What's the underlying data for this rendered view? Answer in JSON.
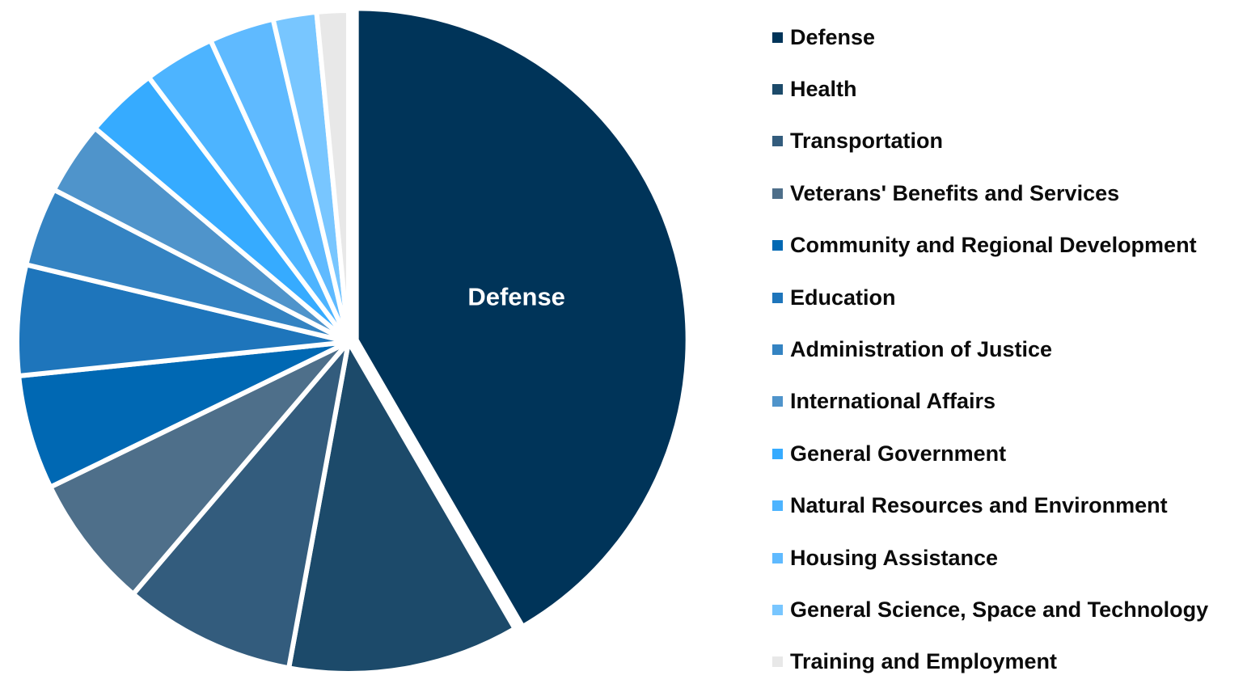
{
  "chart_data": {
    "type": "pie",
    "categories": [
      "Defense",
      "Health",
      "Transportation",
      "Veterans' Benefits and Services",
      "Community and Regional Development",
      "Education",
      "Administration of Justice",
      "International Affairs",
      "General Government",
      "Natural Resources and Environment",
      "Housing Assistance",
      "General Science, Space and Technology",
      "Training and Employment"
    ],
    "values": [
      43.3,
      11.7,
      8.7,
      6.8,
      5.8,
      5.6,
      4.0,
      3.7,
      3.7,
      3.6,
      3.3,
      2.2,
      1.6
    ],
    "colors": [
      "#003459",
      "#1c4a6a",
      "#335c7d",
      "#4e6f8a",
      "#0068b3",
      "#1e75bb",
      "#3483c2",
      "#4f94cb",
      "#36abff",
      "#4db4ff",
      "#5fbaff",
      "#78c6ff",
      "#e8e8e8"
    ],
    "slice_labels": [
      "Defense"
    ],
    "legend_position": "right",
    "exploded": [
      "Defense"
    ]
  }
}
